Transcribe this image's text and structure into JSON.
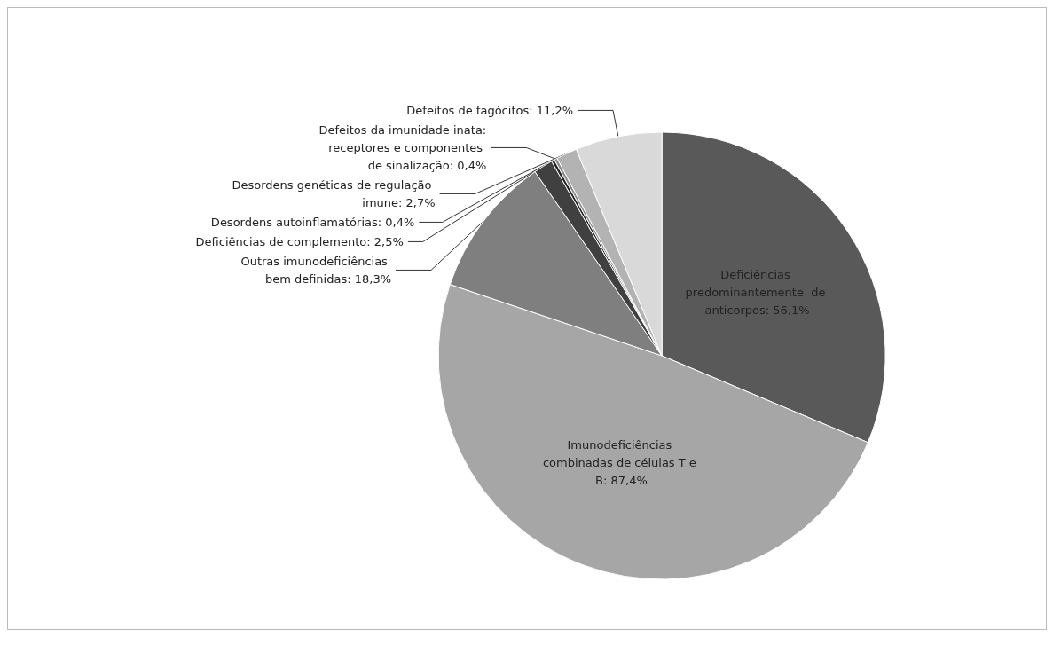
{
  "chart_data": {
    "type": "pie",
    "categories": [
      "Deficiências predominantemente  de anticorpos",
      "Imunodeficiências combinadas de células T e B",
      "Outras imunodeficiências bem definidas",
      "Deficiências de complemento",
      "Desordens autoinflamatórias",
      "Defeitos da imunidade inata: receptores e componentes de sinalização",
      "Desordens genéticas de regulação imune",
      "Defeitos de fagócitos"
    ],
    "values": [
      56.1,
      87.4,
      18.3,
      2.5,
      0.4,
      0.4,
      2.7,
      11.2
    ],
    "value_labels": [
      "56,1%",
      "87,4%",
      "18,3%",
      "2,5%",
      "0,4%",
      "0,4%",
      "2,7%",
      "11,2%"
    ],
    "colors": [
      "#595959",
      "#a6a6a6",
      "#7f7f7f",
      "#404040",
      "#262626",
      "#8c8c8c",
      "#b3b3b3",
      "#d9d9d9"
    ],
    "legend": false
  }
}
